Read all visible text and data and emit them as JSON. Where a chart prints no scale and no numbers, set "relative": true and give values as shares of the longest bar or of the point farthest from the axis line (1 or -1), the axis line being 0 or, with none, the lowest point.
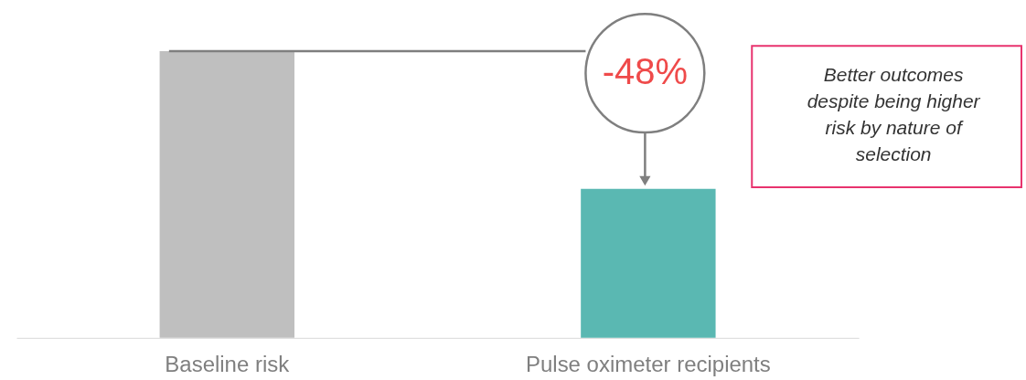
{
  "chart_data": {
    "type": "bar",
    "relative": true,
    "categories": [
      "Baseline risk",
      "Pulse oximeter recipients"
    ],
    "values": [
      1,
      0.52
    ],
    "colors": [
      "#bfbfbf",
      "#5ab8b2"
    ],
    "ref_lines": [
      {
        "axis": "y",
        "value": 1,
        "color": "#7f7f7f"
      }
    ],
    "annotations": [
      "-48%",
      "Better outcomes\ndespite being higher\nrisk by nature of\nselection"
    ],
    "grid": false
  }
}
